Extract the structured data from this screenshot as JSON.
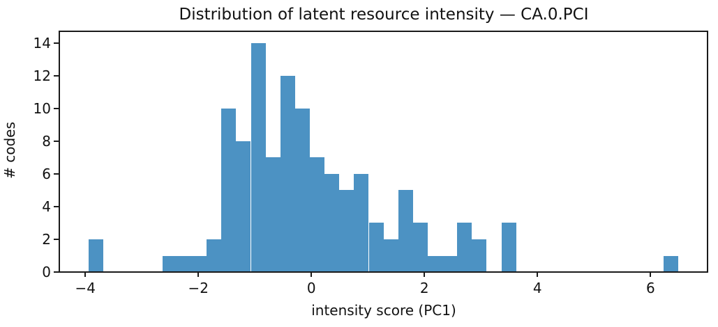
{
  "chart_data": {
    "type": "bar",
    "subtype": "histogram",
    "title": "Distribution of latent resource intensity — CA.0.PCI",
    "xlabel": "intensity score (PC1)",
    "ylabel": "# codes",
    "bar_color": "#4c92c3",
    "spine_color": "#1a1a1a",
    "bins": {
      "start": -3.94,
      "width": 0.2608
    },
    "counts": [
      2,
      0,
      0,
      0,
      0,
      1,
      1,
      1,
      2,
      10,
      8,
      14,
      7,
      12,
      10,
      7,
      6,
      5,
      6,
      3,
      2,
      5,
      3,
      1,
      1,
      3,
      2,
      0,
      3,
      0,
      0,
      0,
      0,
      0,
      0,
      0,
      0,
      0,
      0,
      1
    ],
    "x_ticks": [
      {
        "value": -4,
        "label": "−4"
      },
      {
        "value": -2,
        "label": "−2"
      },
      {
        "value": 0,
        "label": "0"
      },
      {
        "value": 2,
        "label": "2"
      },
      {
        "value": 4,
        "label": "4"
      },
      {
        "value": 6,
        "label": "6"
      }
    ],
    "y_ticks": [
      {
        "value": 0,
        "label": "0"
      },
      {
        "value": 2,
        "label": "2"
      },
      {
        "value": 4,
        "label": "4"
      },
      {
        "value": 6,
        "label": "6"
      },
      {
        "value": 8,
        "label": "8"
      },
      {
        "value": 10,
        "label": "10"
      },
      {
        "value": 12,
        "label": "12"
      },
      {
        "value": 14,
        "label": "14"
      }
    ],
    "xlim": [
      -4.46,
      7.02
    ],
    "ylim": [
      0,
      14.7
    ],
    "grid": false,
    "legend": null
  }
}
